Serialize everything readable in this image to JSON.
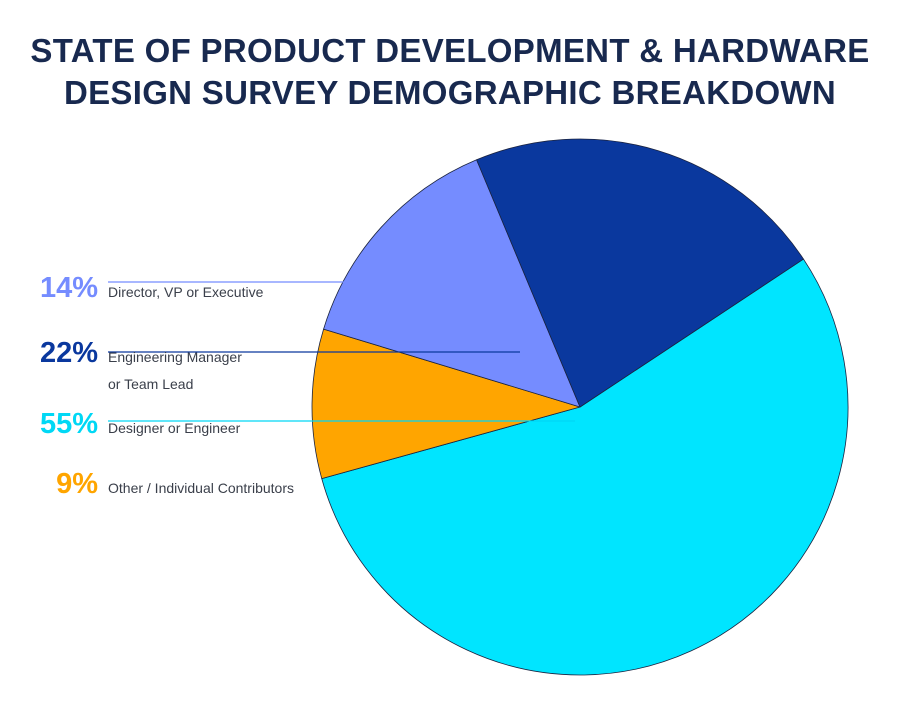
{
  "title": {
    "line1": "STATE OF PRODUCT DEVELOPMENT & HARDWARE",
    "line2": "DESIGN SURVEY DEMOGRAPHIC BREAKDOWN"
  },
  "chart_data": {
    "type": "pie",
    "title": "STATE OF PRODUCT DEVELOPMENT & HARDWARE DESIGN SURVEY DEMOGRAPHIC BREAKDOWN",
    "slices": [
      {
        "id": "designer",
        "label": "Designer or Engineer",
        "label_lines": [
          "Designer or Engineer"
        ],
        "value": 55,
        "value_label": "55%",
        "color": "#00e5ff"
      },
      {
        "id": "other",
        "label": "Other / Individual Contributors",
        "label_lines": [
          "Other / Individual Contributors"
        ],
        "value": 9,
        "value_label": "9%",
        "color": "#ffa500"
      },
      {
        "id": "director",
        "label": "Director, VP or Executive",
        "label_lines": [
          "Director, VP or Executive"
        ],
        "value": 14,
        "value_label": "14%",
        "color": "#758cff"
      },
      {
        "id": "manager",
        "label": "Engineering Manager or Team Lead",
        "label_lines": [
          "Engineering Manager",
          "or Team Lead"
        ],
        "value": 22,
        "value_label": "22%",
        "color": "#0a389e"
      }
    ],
    "legend_order": [
      "director",
      "manager",
      "designer",
      "other"
    ],
    "start_angle_deg": 56.5,
    "direction": "clockwise"
  }
}
